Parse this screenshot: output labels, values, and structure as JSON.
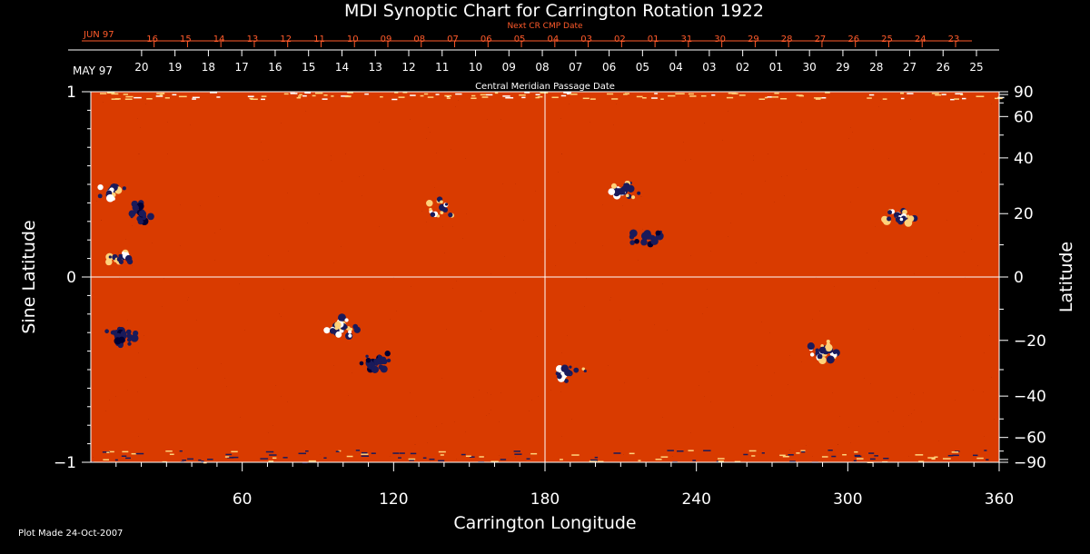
{
  "chart_data": {
    "type": "heatmap",
    "title": "MDI Synoptic Chart for Carrington Rotation 1922",
    "xlabel": "Carrington Longitude",
    "ylabel_left": "Sine Latitude",
    "ylabel_right": "Latitude",
    "xlim": [
      0,
      360
    ],
    "ylim": [
      -1,
      1
    ],
    "x_ticks": [
      60,
      120,
      180,
      240,
      300,
      360
    ],
    "y_ticks_left": [
      "1",
      "0",
      "−1"
    ],
    "y_ticks_right": [
      90,
      60,
      40,
      20,
      0,
      -20,
      -40,
      -60,
      -90
    ],
    "y_ticks_right_labels": [
      "90",
      "60",
      "40",
      "20",
      "0",
      "−20",
      "−40",
      "−60",
      "−90"
    ],
    "cmp_axis": {
      "label": "Central Meridian Passage Date",
      "month_left": "MAY 97",
      "dates": [
        "20",
        "19",
        "18",
        "17",
        "16",
        "15",
        "14",
        "13",
        "12",
        "11",
        "10",
        "09",
        "08",
        "07",
        "06",
        "05",
        "04",
        "03",
        "02",
        "01",
        "30",
        "29",
        "28",
        "27",
        "26",
        "25"
      ]
    },
    "next_cmp_axis": {
      "label": "Next CR CMP Date",
      "month_left": "JUN 97",
      "dates": [
        "16",
        "15",
        "14",
        "13",
        "12",
        "11",
        "10",
        "09",
        "08",
        "07",
        "06",
        "05",
        "04",
        "03",
        "02",
        "01",
        "31",
        "30",
        "29",
        "28",
        "27",
        "26",
        "25",
        "24",
        "23"
      ]
    },
    "grid": "crosshair at 180 longitude and 0 latitude",
    "colors": {
      "background": "#d93a00",
      "strong_positive": "#ffffff",
      "positive": "#ffd27a",
      "negative": "#1a1a5a",
      "strong_negative": "#000033"
    },
    "features": [
      {
        "lon": 8,
        "sinlat": 0.46,
        "polarity": "mixed"
      },
      {
        "lon": 20,
        "sinlat": 0.35,
        "polarity": "negative"
      },
      {
        "lon": 12,
        "sinlat": 0.09,
        "polarity": "mixed"
      },
      {
        "lon": 140,
        "sinlat": 0.37,
        "polarity": "mixed"
      },
      {
        "lon": 211,
        "sinlat": 0.47,
        "polarity": "mixed"
      },
      {
        "lon": 220,
        "sinlat": 0.22,
        "polarity": "negative"
      },
      {
        "lon": 321,
        "sinlat": 0.32,
        "polarity": "mixed"
      },
      {
        "lon": 12,
        "sinlat": -0.32,
        "polarity": "negative"
      },
      {
        "lon": 100,
        "sinlat": -0.27,
        "polarity": "mixed"
      },
      {
        "lon": 113,
        "sinlat": -0.45,
        "polarity": "negative"
      },
      {
        "lon": 190,
        "sinlat": -0.52,
        "polarity": "mixed"
      },
      {
        "lon": 290,
        "sinlat": -0.4,
        "polarity": "mixed"
      }
    ]
  },
  "footer": "Plot Made 24-Oct-2007"
}
